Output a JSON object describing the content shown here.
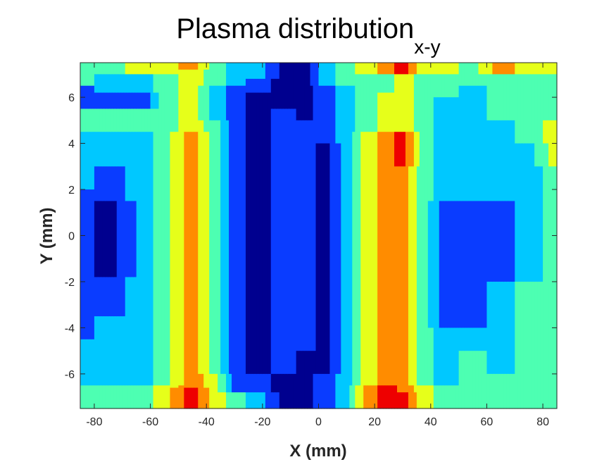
{
  "chart_data": {
    "type": "heatmap",
    "title": "Plasma distribution",
    "title_subscript": "x-y",
    "xlabel": "X (mm)",
    "ylabel": "Y (mm)",
    "xlim": [
      -85,
      85
    ],
    "ylim": [
      -7.5,
      7.5
    ],
    "x_ticks": [
      -80,
      -60,
      -40,
      -20,
      0,
      20,
      40,
      60,
      80
    ],
    "y_ticks": [
      -6,
      -4,
      -2,
      0,
      2,
      4,
      6
    ],
    "x_tick_labels": [
      "-80",
      "-60",
      "-40",
      "-20",
      "0",
      "20",
      "40",
      "60",
      "80"
    ],
    "y_tick_labels": [
      "-6",
      "-4",
      "-2",
      "0",
      "2",
      "4",
      "6"
    ],
    "grid": false,
    "colormap": "jet",
    "colorbar": false,
    "level_colors": [
      "#00008f",
      "#0a3cff",
      "#00c8ff",
      "#4dffb2",
      "#e6ff1a",
      "#ff8c00",
      "#ee0000"
    ],
    "columns": [
      {
        "x": -85,
        "bands": [
          {
            "y0": -7.5,
            "y1": -6.5,
            "level": 3
          },
          {
            "y0": -6.5,
            "y1": -4.5,
            "level": 2
          },
          {
            "y0": -4.5,
            "y1": 2.0,
            "level": 1
          },
          {
            "y0": 2.0,
            "y1": 4.5,
            "level": 2
          },
          {
            "y0": 4.5,
            "y1": 5.5,
            "level": 3
          },
          {
            "y0": 5.5,
            "y1": 6.5,
            "level": 1
          },
          {
            "y0": 6.5,
            "y1": 7.5,
            "level": 3
          }
        ]
      },
      {
        "x": -75,
        "bands": [
          {
            "y0": -7.5,
            "y1": -6.5,
            "level": 3
          },
          {
            "y0": -6.5,
            "y1": -3.5,
            "level": 2
          },
          {
            "y0": -3.5,
            "y1": -1.8,
            "level": 1
          },
          {
            "y0": -1.8,
            "y1": 1.5,
            "level": 0
          },
          {
            "y0": 1.5,
            "y1": 3.0,
            "level": 1
          },
          {
            "y0": 3.0,
            "y1": 4.5,
            "level": 2
          },
          {
            "y0": 4.5,
            "y1": 5.5,
            "level": 3
          },
          {
            "y0": 5.5,
            "y1": 6.2,
            "level": 1
          },
          {
            "y0": 6.2,
            "y1": 7.0,
            "level": 2
          },
          {
            "y0": 7.0,
            "y1": 7.5,
            "level": 3
          }
        ]
      },
      {
        "x": -62,
        "bands": [
          {
            "y0": -7.5,
            "y1": -6.5,
            "level": 3
          },
          {
            "y0": -6.5,
            "y1": -3.5,
            "level": 2
          },
          {
            "y0": -3.5,
            "y1": 4.5,
            "level": 2
          },
          {
            "y0": 4.5,
            "y1": 5.5,
            "level": 3
          },
          {
            "y0": 5.5,
            "y1": 6.2,
            "level": 1
          },
          {
            "y0": 6.2,
            "y1": 7.0,
            "level": 2
          },
          {
            "y0": 7.0,
            "y1": 7.5,
            "level": 4
          }
        ]
      },
      {
        "x": -55,
        "bands": [
          {
            "y0": -7.5,
            "y1": -6.5,
            "level": 4
          },
          {
            "y0": -6.5,
            "y1": 4.5,
            "level": 3
          },
          {
            "y0": 4.5,
            "y1": 6.0,
            "level": 3
          },
          {
            "y0": 6.0,
            "y1": 7.0,
            "level": 3
          },
          {
            "y0": 7.0,
            "y1": 7.5,
            "level": 4
          }
        ]
      },
      {
        "x": -45,
        "bands": [
          {
            "y0": -7.5,
            "y1": -6.6,
            "level": 6
          },
          {
            "y0": -6.6,
            "y1": -2.0,
            "level": 5
          },
          {
            "y0": -2.0,
            "y1": 4.5,
            "level": 5
          },
          {
            "y0": 4.5,
            "y1": 6.5,
            "level": 4
          },
          {
            "y0": 6.5,
            "y1": 7.2,
            "level": 4
          },
          {
            "y0": 7.2,
            "y1": 7.5,
            "level": 5
          }
        ]
      },
      {
        "x": -37,
        "bands": [
          {
            "y0": -7.5,
            "y1": -6.0,
            "level": 4
          },
          {
            "y0": -6.0,
            "y1": 5.0,
            "level": 3
          },
          {
            "y0": 5.0,
            "y1": 6.5,
            "level": 2
          },
          {
            "y0": 6.5,
            "y1": 7.5,
            "level": 3
          }
        ]
      },
      {
        "x": -30,
        "bands": [
          {
            "y0": -7.5,
            "y1": -6.8,
            "level": 3
          },
          {
            "y0": -6.8,
            "y1": 6.5,
            "level": 1
          },
          {
            "y0": 6.5,
            "y1": 7.5,
            "level": 2
          }
        ]
      },
      {
        "x": -22,
        "bands": [
          {
            "y0": -7.5,
            "y1": -6.8,
            "level": 2
          },
          {
            "y0": -6.8,
            "y1": -6.0,
            "level": 1
          },
          {
            "y0": -6.0,
            "y1": 6.2,
            "level": 0
          },
          {
            "y0": 6.2,
            "y1": 6.8,
            "level": 1
          },
          {
            "y0": 6.8,
            "y1": 7.5,
            "level": 2
          }
        ]
      },
      {
        "x": -12,
        "bands": [
          {
            "y0": -7.5,
            "y1": -6.0,
            "level": 0
          },
          {
            "y0": -6.0,
            "y1": 3.0,
            "level": 1
          },
          {
            "y0": 3.0,
            "y1": 5.5,
            "level": 1
          },
          {
            "y0": 5.5,
            "y1": 7.5,
            "level": 0
          }
        ]
      },
      {
        "x": -5,
        "bands": [
          {
            "y0": -7.5,
            "y1": -5.0,
            "level": 0
          },
          {
            "y0": -5.0,
            "y1": 5.0,
            "level": 1
          },
          {
            "y0": 5.0,
            "y1": 7.5,
            "level": 0
          }
        ]
      },
      {
        "x": 2,
        "bands": [
          {
            "y0": -7.5,
            "y1": -6.0,
            "level": 1
          },
          {
            "y0": -6.0,
            "y1": 4.0,
            "level": 0
          },
          {
            "y0": 4.0,
            "y1": 6.5,
            "level": 1
          },
          {
            "y0": 6.5,
            "y1": 7.5,
            "level": 2
          }
        ]
      },
      {
        "x": 10,
        "bands": [
          {
            "y0": -7.5,
            "y1": -6.0,
            "level": 2
          },
          {
            "y0": -6.0,
            "y1": 6.5,
            "level": 2
          },
          {
            "y0": 6.5,
            "y1": 7.5,
            "level": 3
          }
        ]
      },
      {
        "x": 17,
        "bands": [
          {
            "y0": -7.5,
            "y1": -6.5,
            "level": 5
          },
          {
            "y0": -6.5,
            "y1": -4.5,
            "level": 4
          },
          {
            "y0": -4.5,
            "y1": 4.5,
            "level": 4
          },
          {
            "y0": 4.5,
            "y1": 6.0,
            "level": 3
          },
          {
            "y0": 6.0,
            "y1": 7.0,
            "level": 3
          },
          {
            "y0": 7.0,
            "y1": 7.5,
            "level": 4
          }
        ]
      },
      {
        "x": 25,
        "bands": [
          {
            "y0": -7.5,
            "y1": -6.5,
            "level": 6
          },
          {
            "y0": -6.5,
            "y1": -3.5,
            "level": 5
          },
          {
            "y0": -3.5,
            "y1": 4.5,
            "level": 5
          },
          {
            "y0": 4.5,
            "y1": 6.2,
            "level": 4
          },
          {
            "y0": 6.2,
            "y1": 7.0,
            "level": 3
          },
          {
            "y0": 7.0,
            "y1": 7.5,
            "level": 5
          }
        ]
      },
      {
        "x": 30,
        "bands": [
          {
            "y0": -7.5,
            "y1": -6.8,
            "level": 6
          },
          {
            "y0": -6.8,
            "y1": -5.0,
            "level": 5
          },
          {
            "y0": -5.0,
            "y1": 3.0,
            "level": 5
          },
          {
            "y0": 3.0,
            "y1": 4.5,
            "level": 6
          },
          {
            "y0": 4.5,
            "y1": 6.5,
            "level": 4
          },
          {
            "y0": 6.5,
            "y1": 7.0,
            "level": 4
          },
          {
            "y0": 7.0,
            "y1": 7.5,
            "level": 6
          }
        ]
      },
      {
        "x": 37,
        "bands": [
          {
            "y0": -7.5,
            "y1": -6.5,
            "level": 4
          },
          {
            "y0": -6.5,
            "y1": 5.0,
            "level": 3
          },
          {
            "y0": 5.0,
            "y1": 7.0,
            "level": 3
          },
          {
            "y0": 7.0,
            "y1": 7.5,
            "level": 4
          }
        ]
      },
      {
        "x": 45,
        "bands": [
          {
            "y0": -7.5,
            "y1": -6.5,
            "level": 3
          },
          {
            "y0": -6.5,
            "y1": -4.0,
            "level": 2
          },
          {
            "y0": -4.0,
            "y1": 1.5,
            "level": 1
          },
          {
            "y0": 1.5,
            "y1": 4.5,
            "level": 2
          },
          {
            "y0": 4.5,
            "y1": 6.0,
            "level": 2
          },
          {
            "y0": 6.0,
            "y1": 7.0,
            "level": 3
          },
          {
            "y0": 7.0,
            "y1": 7.5,
            "level": 4
          }
        ]
      },
      {
        "x": 55,
        "bands": [
          {
            "y0": -7.5,
            "y1": -6.0,
            "level": 3
          },
          {
            "y0": -6.0,
            "y1": -5.0,
            "level": 3
          },
          {
            "y0": -5.0,
            "y1": -4.0,
            "level": 2
          },
          {
            "y0": -4.0,
            "y1": 1.5,
            "level": 1
          },
          {
            "y0": 1.5,
            "y1": 5.0,
            "level": 2
          },
          {
            "y0": 5.0,
            "y1": 6.5,
            "level": 2
          },
          {
            "y0": 6.5,
            "y1": 7.5,
            "level": 3
          }
        ]
      },
      {
        "x": 65,
        "bands": [
          {
            "y0": -7.5,
            "y1": -6.0,
            "level": 3
          },
          {
            "y0": -6.0,
            "y1": -2.0,
            "level": 2
          },
          {
            "y0": -2.0,
            "y1": 1.5,
            "level": 1
          },
          {
            "y0": 1.5,
            "y1": 5.0,
            "level": 2
          },
          {
            "y0": 5.0,
            "y1": 7.0,
            "level": 3
          },
          {
            "y0": 7.0,
            "y1": 7.5,
            "level": 5
          }
        ]
      },
      {
        "x": 75,
        "bands": [
          {
            "y0": -7.5,
            "y1": -6.0,
            "level": 3
          },
          {
            "y0": -6.0,
            "y1": -2.0,
            "level": 3
          },
          {
            "y0": -2.0,
            "y1": 1.5,
            "level": 2
          },
          {
            "y0": 1.5,
            "y1": 4.0,
            "level": 2
          },
          {
            "y0": 4.0,
            "y1": 5.0,
            "level": 3
          },
          {
            "y0": 5.0,
            "y1": 7.0,
            "level": 3
          },
          {
            "y0": 7.0,
            "y1": 7.5,
            "level": 4
          }
        ]
      },
      {
        "x": 85,
        "bands": [
          {
            "y0": -7.5,
            "y1": -5.0,
            "level": 3
          },
          {
            "y0": -5.0,
            "y1": 3.0,
            "level": 3
          },
          {
            "y0": 3.0,
            "y1": 5.0,
            "level": 4
          },
          {
            "y0": 5.0,
            "y1": 7.0,
            "level": 3
          },
          {
            "y0": 7.0,
            "y1": 7.5,
            "level": 4
          }
        ]
      }
    ]
  }
}
